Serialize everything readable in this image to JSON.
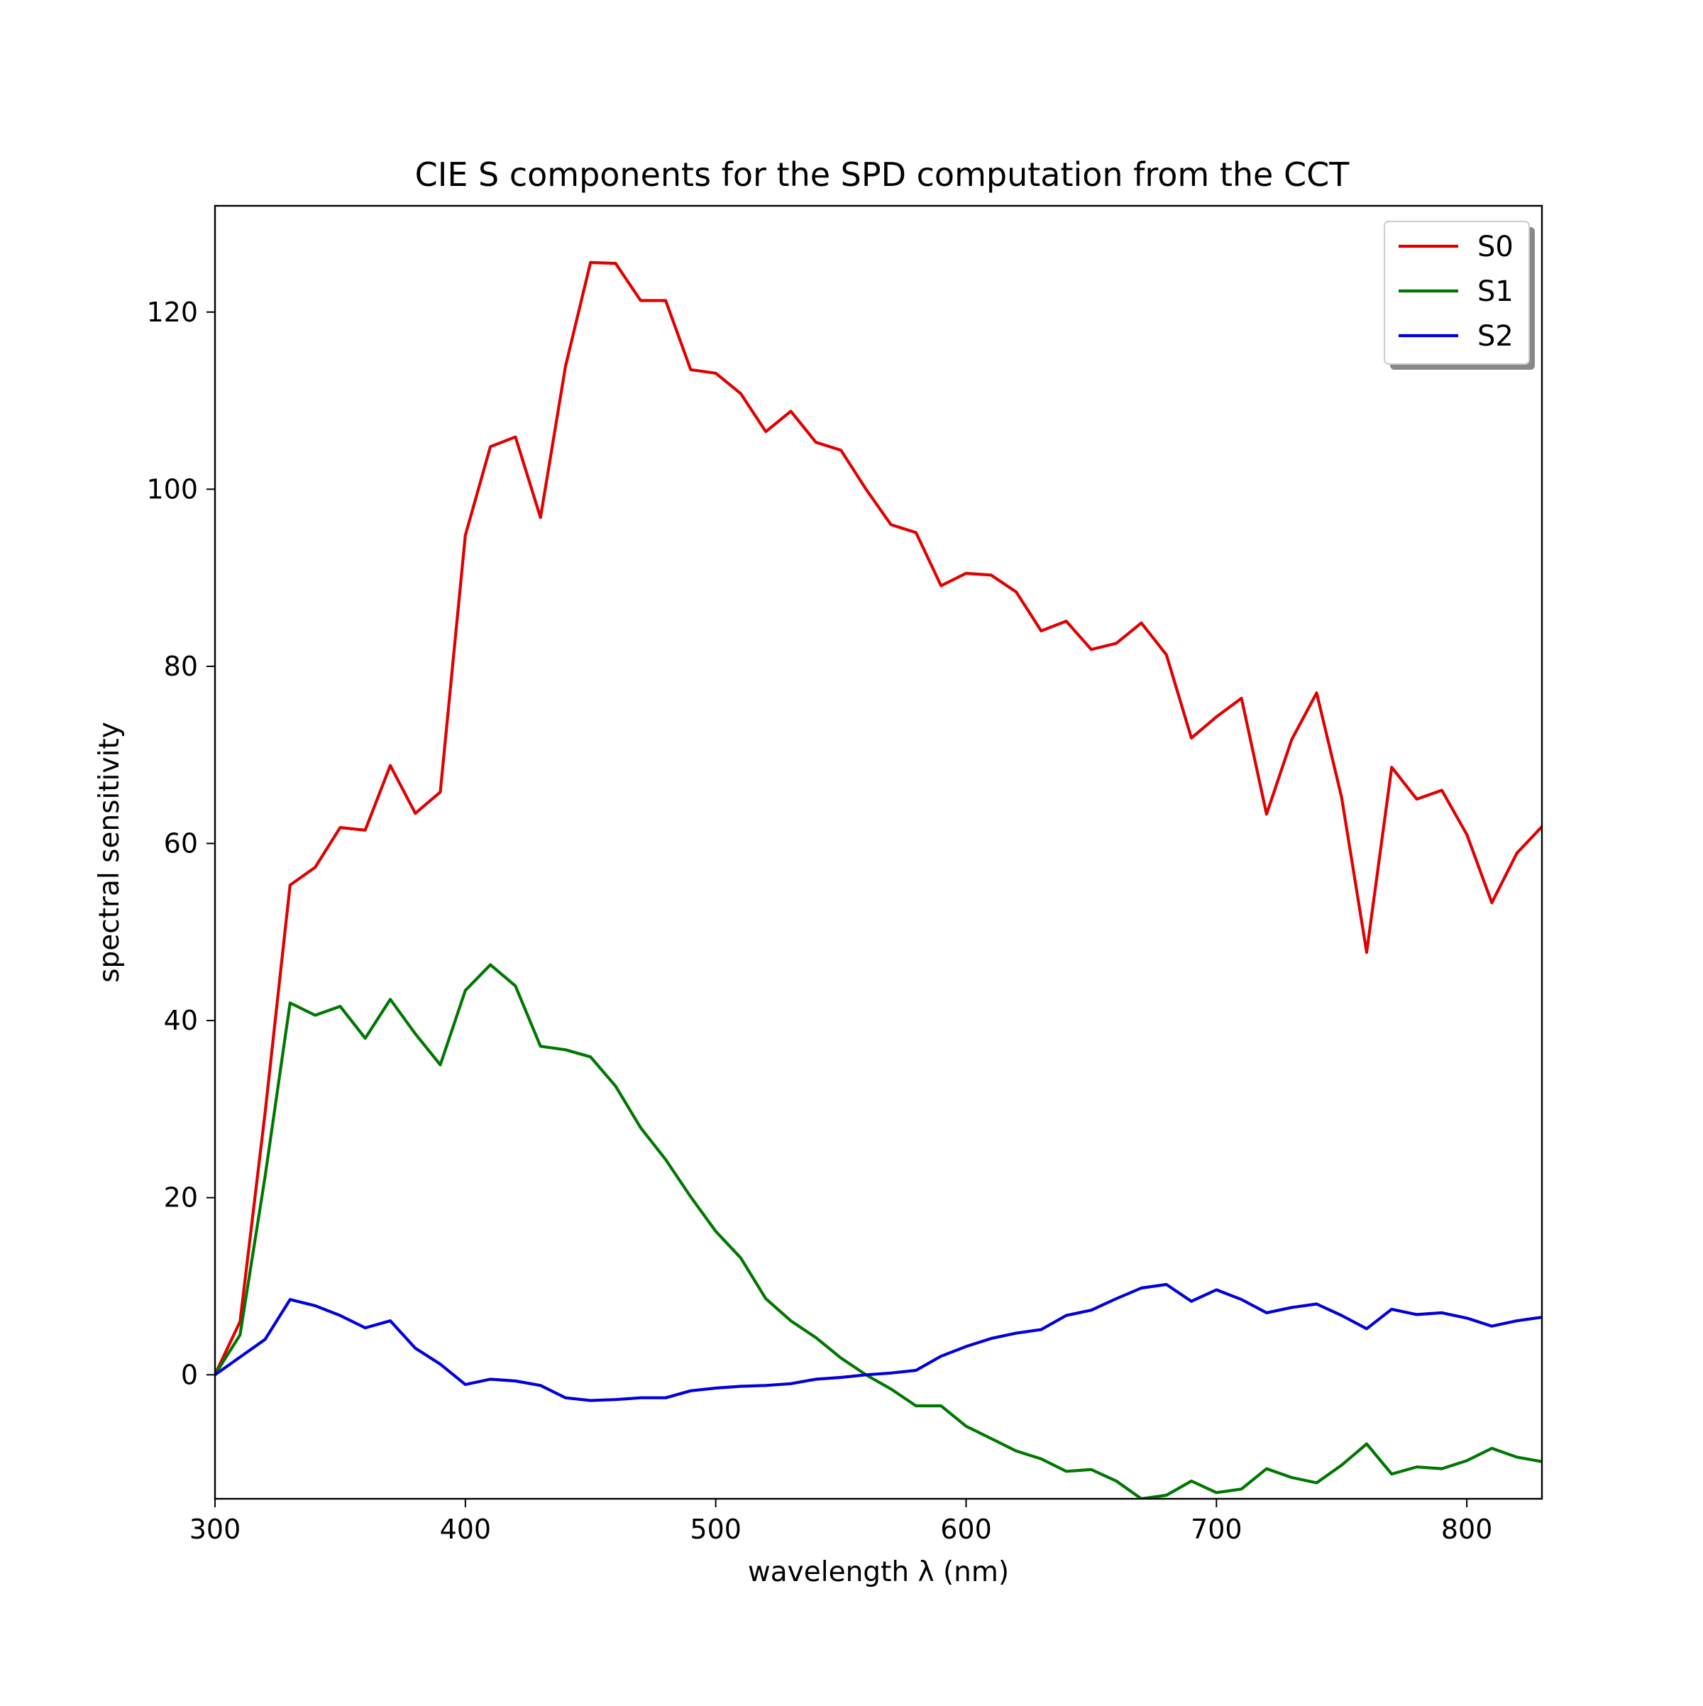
{
  "chart_data": {
    "type": "line",
    "title": "CIE S components for the SPD computation from the CCT",
    "xlabel": "wavelength λ (nm)",
    "ylabel": "spectral sensitivity",
    "xlim": [
      300,
      830
    ],
    "ylim": [
      -14,
      132
    ],
    "x_ticks": [
      300,
      400,
      500,
      600,
      700,
      800
    ],
    "y_ticks": [
      0,
      20,
      40,
      60,
      80,
      100,
      120
    ],
    "grid": false,
    "legend_position": "top-right",
    "x": [
      300,
      310,
      320,
      330,
      340,
      350,
      360,
      370,
      380,
      390,
      400,
      410,
      420,
      430,
      440,
      450,
      460,
      470,
      480,
      490,
      500,
      510,
      520,
      530,
      540,
      550,
      560,
      570,
      580,
      590,
      600,
      610,
      620,
      630,
      640,
      650,
      660,
      670,
      680,
      690,
      700,
      710,
      720,
      730,
      740,
      750,
      760,
      770,
      780,
      790,
      800,
      810,
      820,
      830
    ],
    "series": [
      {
        "name": "S0",
        "color": "#e00000",
        "values": [
          0.04,
          6.0,
          29.6,
          55.3,
          57.3,
          61.8,
          61.5,
          68.8,
          63.4,
          65.8,
          94.8,
          104.8,
          105.9,
          96.8,
          113.9,
          125.6,
          125.5,
          121.3,
          121.3,
          113.5,
          113.1,
          110.8,
          106.5,
          108.8,
          105.3,
          104.4,
          100.0,
          96.0,
          95.1,
          89.1,
          90.5,
          90.3,
          88.4,
          84.0,
          85.1,
          81.9,
          82.6,
          84.9,
          81.3,
          71.9,
          74.3,
          76.4,
          63.3,
          71.7,
          77.0,
          65.2,
          47.7,
          68.6,
          65.0,
          66.0,
          61.0,
          53.3,
          58.9,
          61.9
        ]
      },
      {
        "name": "S1",
        "color": "#007700",
        "values": [
          0.02,
          4.5,
          22.4,
          42.0,
          40.6,
          41.6,
          38.0,
          42.4,
          38.5,
          35.0,
          43.4,
          46.3,
          43.9,
          37.1,
          36.7,
          35.9,
          32.6,
          27.9,
          24.3,
          20.1,
          16.2,
          13.2,
          8.6,
          6.1,
          4.2,
          1.9,
          0.0,
          -1.6,
          -3.5,
          -3.5,
          -5.8,
          -7.2,
          -8.6,
          -9.5,
          -10.9,
          -10.7,
          -12.0,
          -14.0,
          -13.6,
          -12.0,
          -13.3,
          -12.9,
          -10.6,
          -11.6,
          -12.2,
          -10.2,
          -7.8,
          -11.2,
          -10.4,
          -10.6,
          -9.7,
          -8.3,
          -9.3,
          -9.8
        ]
      },
      {
        "name": "S2",
        "color": "#0000dd",
        "values": [
          0.0,
          2.0,
          4.0,
          8.5,
          7.8,
          6.7,
          5.3,
          6.1,
          3.0,
          1.2,
          -1.1,
          -0.5,
          -0.7,
          -1.2,
          -2.6,
          -2.9,
          -2.8,
          -2.6,
          -2.6,
          -1.8,
          -1.5,
          -1.3,
          -1.2,
          -1.0,
          -0.5,
          -0.3,
          0.0,
          0.2,
          0.5,
          2.1,
          3.2,
          4.1,
          4.7,
          5.1,
          6.7,
          7.3,
          8.6,
          9.8,
          10.2,
          8.3,
          9.6,
          8.5,
          7.0,
          7.6,
          8.0,
          6.7,
          5.2,
          7.4,
          6.8,
          7.0,
          6.4,
          5.5,
          6.1,
          6.5
        ]
      }
    ]
  }
}
